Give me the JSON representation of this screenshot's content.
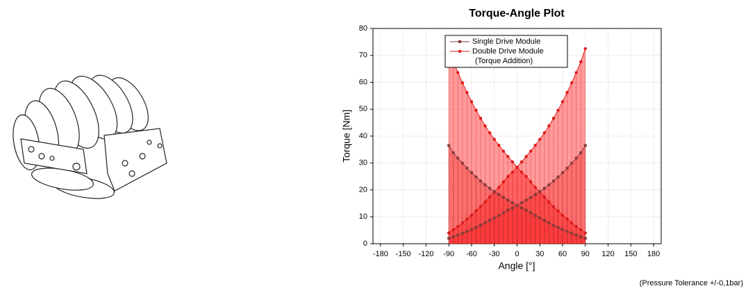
{
  "chart_data": {
    "type": "line",
    "title": "Torque-Angle Plot",
    "x_label": "Angle [°]",
    "y_label": "Torque [Nm]",
    "x": [
      -90,
      -84,
      -78,
      -72,
      -66,
      -60,
      -54,
      -48,
      -42,
      -36,
      -30,
      -24,
      -18,
      -12,
      -6,
      0,
      6,
      12,
      18,
      24,
      30,
      36,
      42,
      48,
      54,
      60,
      66,
      72,
      78,
      84,
      90
    ],
    "series": [
      {
        "name": "Single Drive Module",
        "color": "#8a3a3a",
        "values": [
          2.0,
          2.6,
          3.2,
          3.9,
          4.6,
          5.3,
          6.1,
          6.9,
          7.8,
          8.7,
          9.6,
          10.5,
          11.5,
          12.5,
          13.3,
          14.2,
          15.2,
          16.2,
          17.2,
          18.3,
          19.4,
          20.6,
          21.9,
          23.3,
          24.8,
          26.4,
          28.1,
          29.9,
          31.8,
          33.8,
          36.5
        ]
      },
      {
        "color": "#8a3a3a",
        "values": [
          36.5,
          33.8,
          31.8,
          29.9,
          28.1,
          26.4,
          24.8,
          23.3,
          21.9,
          20.6,
          19.4,
          18.3,
          17.2,
          16.2,
          15.2,
          14.2,
          13.3,
          12.5,
          11.5,
          10.5,
          9.6,
          8.7,
          7.8,
          6.9,
          6.1,
          5.3,
          4.6,
          3.9,
          3.2,
          2.6,
          2.0
        ]
      },
      {
        "name": "Double Drive Module",
        "color": "#e01818",
        "values": [
          4.0,
          5.2,
          6.4,
          7.8,
          9.2,
          10.6,
          12.2,
          13.8,
          15.6,
          17.4,
          19.2,
          21.0,
          23.0,
          25.0,
          26.6,
          28.4,
          30.4,
          32.4,
          34.4,
          36.6,
          38.8,
          41.2,
          43.8,
          46.6,
          49.6,
          52.8,
          56.2,
          59.8,
          63.6,
          67.6,
          72.5
        ]
      },
      {
        "color": "#e01818",
        "values": [
          72.5,
          67.6,
          63.6,
          59.8,
          56.2,
          52.8,
          49.6,
          46.6,
          43.8,
          41.2,
          38.8,
          36.6,
          34.4,
          32.4,
          30.4,
          28.4,
          26.6,
          25.0,
          23.0,
          21.0,
          19.2,
          17.4,
          15.6,
          13.8,
          12.2,
          10.6,
          9.2,
          7.8,
          6.4,
          5.2,
          4.0
        ]
      }
    ],
    "legend_note": "(Torque Addition)",
    "footnote": "(Pressure Tolerance +/-0,1bar)",
    "xlim": [
      -190,
      190
    ],
    "xticks": [
      -180,
      -150,
      -120,
      -90,
      -60,
      -30,
      0,
      30,
      60,
      90,
      120,
      150,
      180
    ],
    "ylim": [
      0,
      80
    ],
    "yticks": [
      0,
      10,
      20,
      30,
      40,
      50,
      60,
      70,
      80
    ],
    "grid": true,
    "legend": "top"
  }
}
